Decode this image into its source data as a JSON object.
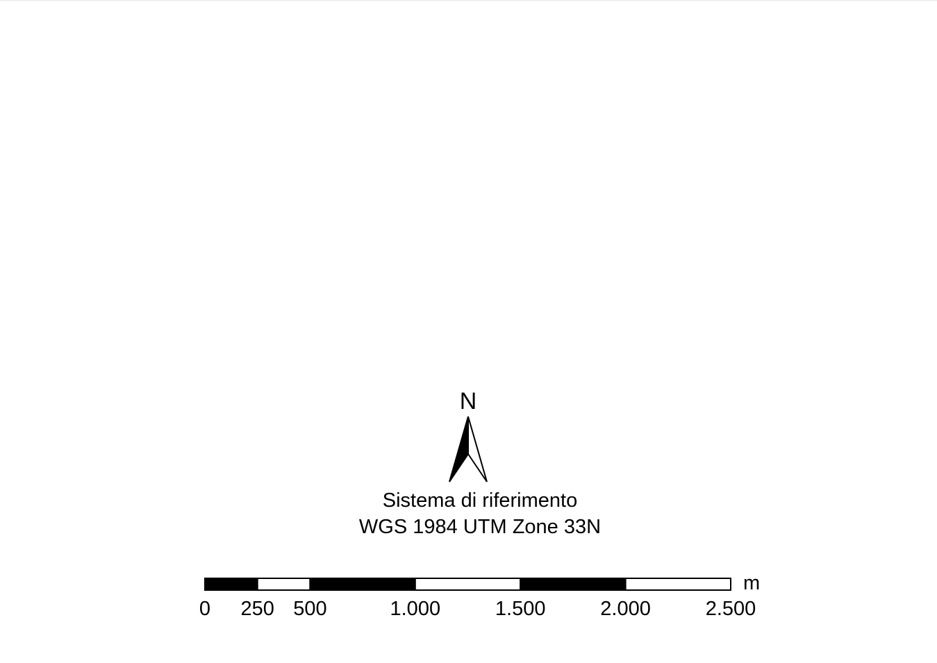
{
  "map": {
    "north_label": "N",
    "crs_caption_line1": "Sistema di riferimento",
    "crs_caption_line2": "WGS 1984 UTM Zone 33N"
  },
  "scale_bar": {
    "unit": "m",
    "breaks": [
      0,
      250,
      500,
      1000,
      1500,
      2000,
      2500
    ],
    "labels": [
      "0",
      "250",
      "500",
      "1.000",
      "1.500",
      "2.000",
      "2.500"
    ],
    "segment_fill": [
      "#000000",
      "#ffffff",
      "#000000",
      "#ffffff",
      "#000000",
      "#ffffff"
    ]
  },
  "colors": {
    "ink": "#000000",
    "background": "#ffffff"
  }
}
